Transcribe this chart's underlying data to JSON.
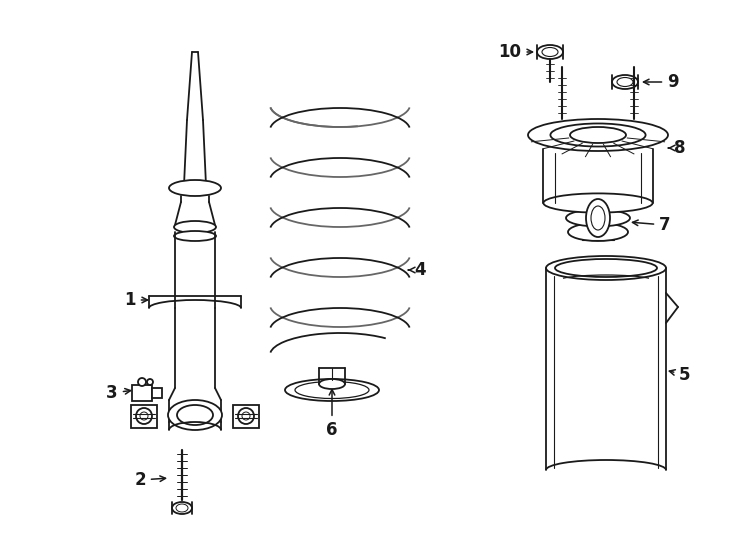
{
  "bg_color": "#ffffff",
  "line_color": "#1a1a1a",
  "lw": 1.3,
  "label_fontsize": 12,
  "figw": 7.34,
  "figh": 5.4,
  "dpi": 100
}
